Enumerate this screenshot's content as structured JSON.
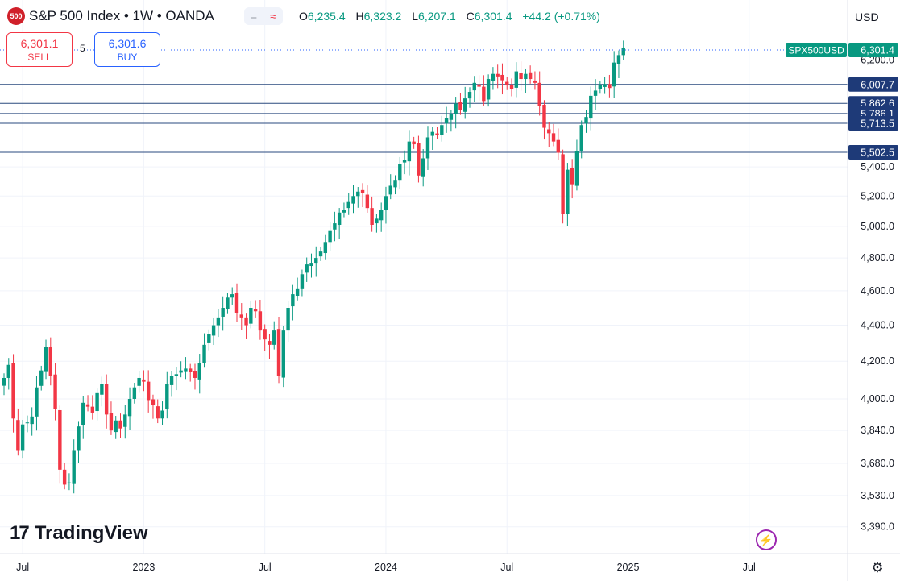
{
  "header": {
    "symbol_badge": "500",
    "title": "S&P 500 Index • 1W • OANDA",
    "ohlc": [
      {
        "label": "O",
        "value": "6,235.4"
      },
      {
        "label": "H",
        "value": "6,323.2"
      },
      {
        "label": "L",
        "value": "6,207.1"
      },
      {
        "label": "C",
        "value": "6,301.4"
      }
    ],
    "change": "+44.2 (+0.71%)",
    "currency": "USD"
  },
  "trade": {
    "sell_price": "6,301.1",
    "sell_label": "SELL",
    "spread": "5",
    "buy_price": "6,301.6",
    "buy_label": "BUY"
  },
  "icons": {
    "settings": "gear-icon",
    "replay": "lightning-icon",
    "compare": "equals-icon",
    "indicator": "wave-icon"
  },
  "brand": {
    "name": "TradingView"
  },
  "colors": {
    "up": "#089981",
    "down": "#f23645",
    "level_line": "#2a4a7f",
    "level_label_bg": "#1e3a78",
    "price_label_bg": "#089981"
  },
  "chart_data": {
    "type": "candlestick",
    "symbol_label": "SPX500USD",
    "last_price": 6301.4,
    "y_scale": "log",
    "y_ticks": [
      3390,
      3530,
      3680,
      3840,
      4000,
      4200,
      4400,
      4600,
      4800,
      5000,
      5200,
      5400,
      6200
    ],
    "y_tick_labels": [
      "3,390.0",
      "3,530.0",
      "3,680.0",
      "3,840.0",
      "4,000.0",
      "4,200.0",
      "4,400.0",
      "4,600.0",
      "4,800.0",
      "5,000.0",
      "5,200.0",
      "5,400.0",
      "6,200.0"
    ],
    "x_labels": [
      "Jul",
      "2023",
      "Jul",
      "2024",
      "Jul",
      "2025",
      "Jul"
    ],
    "x_label_weeks": [
      4,
      30,
      56,
      82,
      108,
      134,
      160
    ],
    "levels": [
      6007.7,
      5862.6,
      5786.1,
      5713.5,
      5502.5
    ],
    "level_labels": [
      "6,007.7",
      "5,862.6",
      "5,786.1",
      "5,713.5",
      "5,502.5"
    ],
    "weekly_close": [
      4110,
      4180,
      3900,
      3740,
      3870,
      3880,
      3910,
      4060,
      4150,
      4280,
      4120,
      3950,
      3650,
      3580,
      3590,
      3740,
      3860,
      3980,
      3960,
      3930,
      4030,
      4080,
      3920,
      3840,
      3890,
      3850,
      3920,
      4000,
      4060,
      4110,
      4090,
      3990,
      3970,
      3900,
      3940,
      4080,
      4120,
      4130,
      4150,
      4160,
      4140,
      4110,
      4190,
      4290,
      4350,
      4400,
      4440,
      4500,
      4560,
      4580,
      4470,
      4440,
      4400,
      4500,
      4480,
      4370,
      4320,
      4290,
      4370,
      4120,
      4370,
      4500,
      4580,
      4610,
      4700,
      4760,
      4770,
      4800,
      4840,
      4900,
      4970,
      5020,
      5090,
      5110,
      5160,
      5200,
      5230,
      5220,
      5120,
      5010,
      5050,
      5110,
      5200,
      5270,
      5310,
      5420,
      5450,
      5580,
      5560,
      5340,
      5460,
      5610,
      5650,
      5630,
      5700,
      5750,
      5780,
      5860,
      5810,
      5900,
      5950,
      6020,
      5990,
      5880,
      6050,
      6090,
      6070,
      6040,
      6000,
      5970,
      6110,
      6050,
      6090,
      6050,
      6020,
      5840,
      5680,
      5640,
      5580,
      5500,
      5080,
      5380,
      5280,
      5510,
      5700,
      5760,
      5920,
      5960,
      6000,
      6010,
      5980,
      6180,
      6240,
      6301.4
    ]
  }
}
